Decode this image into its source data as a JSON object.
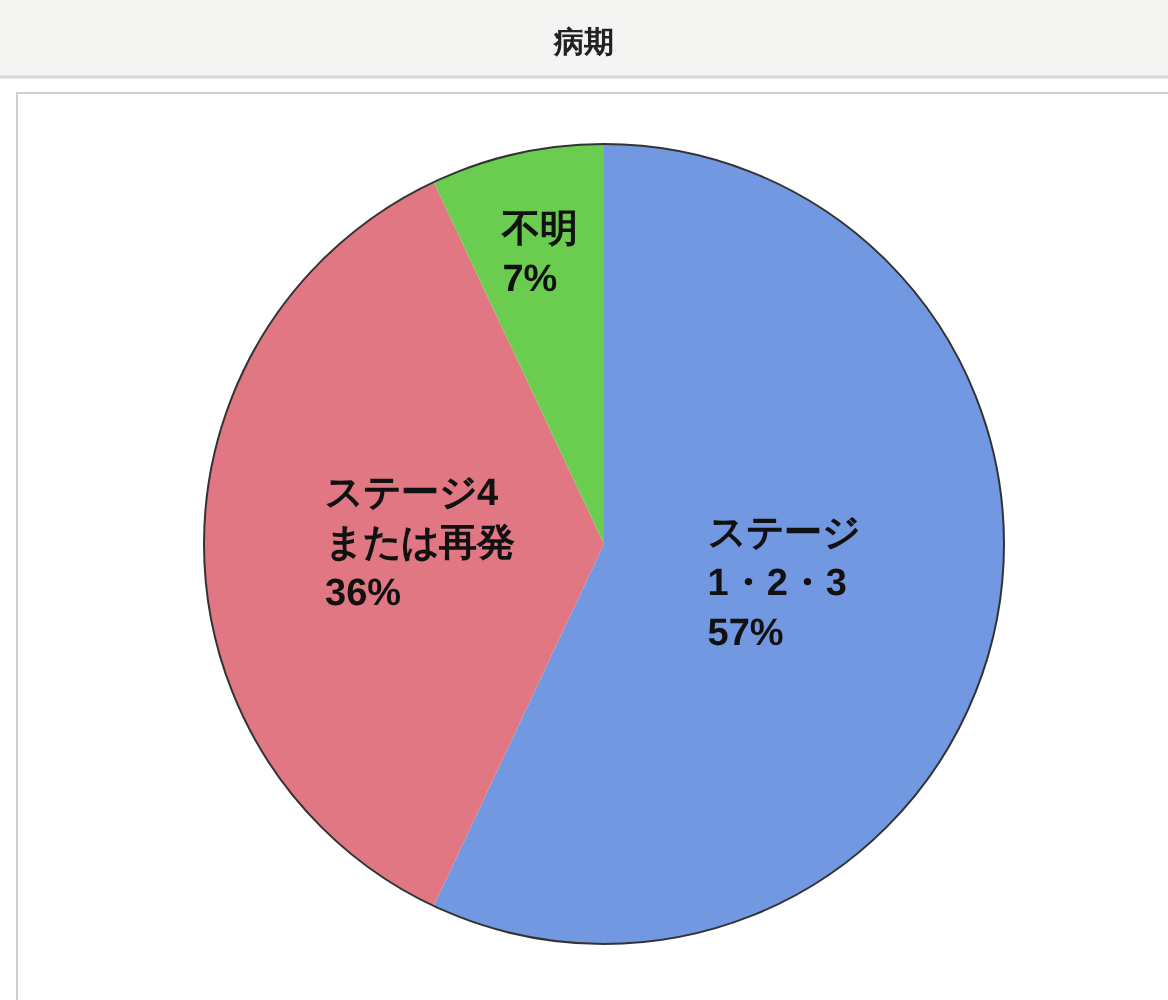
{
  "chart_data": {
    "type": "pie",
    "title": "病期",
    "categories": [
      "ステージ\n1・2・3",
      "ステージ4\nまたは再発",
      "不明"
    ],
    "values": [
      57,
      36,
      7
    ],
    "value_labels": [
      "57%",
      "36%",
      "7%"
    ],
    "colors": [
      "#7198e0",
      "#e07782",
      "#6acd4f"
    ]
  }
}
